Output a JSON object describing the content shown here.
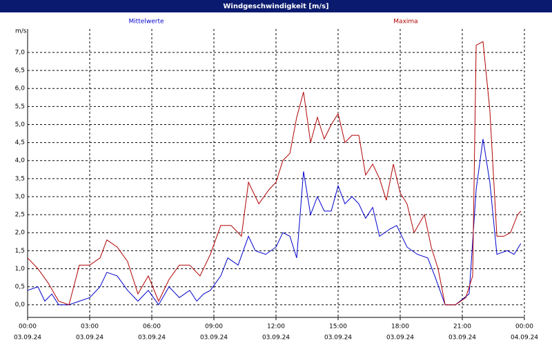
{
  "chart_data": {
    "type": "line",
    "title": "Windgeschwindigkeit [m/s]",
    "y_label": "m/s",
    "xlim": [
      0,
      24
    ],
    "ylim": [
      -0.35,
      7.65
    ],
    "grid": true,
    "xticks": [
      {
        "value": 0,
        "label": "00:00"
      },
      {
        "value": 3,
        "label": "03:00"
      },
      {
        "value": 6,
        "label": "06:00"
      },
      {
        "value": 9,
        "label": "09:00"
      },
      {
        "value": 12,
        "label": "12:00"
      },
      {
        "value": 15,
        "label": "15:00"
      },
      {
        "value": 18,
        "label": "18:00"
      },
      {
        "value": 21,
        "label": "21:00"
      },
      {
        "value": 24,
        "label": "00:00"
      }
    ],
    "xtick_dates": [
      "03.09.24",
      "03.09.24",
      "03.09.24",
      "03.09.24",
      "03.09.24",
      "03.09.24",
      "03.09.24",
      "03.09.24",
      "04.09.24"
    ],
    "yticks": [
      {
        "value": 0,
        "label": "0,0"
      },
      {
        "value": 0.5,
        "label": "0,5"
      },
      {
        "value": 1,
        "label": "1,0"
      },
      {
        "value": 1.5,
        "label": "1,5"
      },
      {
        "value": 2,
        "label": "2,0"
      },
      {
        "value": 2.5,
        "label": "2,5"
      },
      {
        "value": 3,
        "label": "3,0"
      },
      {
        "value": 3.5,
        "label": "3,5"
      },
      {
        "value": 4,
        "label": "4,0"
      },
      {
        "value": 4.5,
        "label": "4,5"
      },
      {
        "value": 5,
        "label": "5,0"
      },
      {
        "value": 5.5,
        "label": "5,5"
      },
      {
        "value": 6,
        "label": "6,0"
      },
      {
        "value": 6.5,
        "label": "6,5"
      },
      {
        "value": 7,
        "label": "7,0"
      }
    ],
    "series": [
      {
        "name": "Mittelwerte",
        "color": "#0000cc",
        "x": [
          0,
          0.5,
          0.83,
          1.17,
          1.5,
          2,
          2.5,
          3,
          3.5,
          3.83,
          4.33,
          4.83,
          5.33,
          5.83,
          6.33,
          6.83,
          7.33,
          7.83,
          8.17,
          8.5,
          8.83,
          9.33,
          9.67,
          10.17,
          10.67,
          11,
          11.5,
          12,
          12.33,
          12.67,
          13,
          13.33,
          13.67,
          14,
          14.33,
          14.67,
          15,
          15.33,
          15.67,
          16,
          16.33,
          16.67,
          17,
          17.5,
          17.83,
          18.33,
          18.83,
          19.33,
          19.67,
          20.17,
          20.67,
          21.33,
          21.67,
          22,
          22.33,
          22.67,
          23.17,
          23.5,
          23.83
        ],
        "values": [
          0.4,
          0.5,
          0.1,
          0.3,
          0.0,
          0,
          0.1,
          0.2,
          0.5,
          0.9,
          0.8,
          0.4,
          0.1,
          0.4,
          0.0,
          0.5,
          0.2,
          0.4,
          0.1,
          0.3,
          0.4,
          0.8,
          1.3,
          1.1,
          1.9,
          1.5,
          1.4,
          1.6,
          2.0,
          1.9,
          1.3,
          3.7,
          2.5,
          3.0,
          2.6,
          2.6,
          3.3,
          2.8,
          3.0,
          2.8,
          2.4,
          2.7,
          1.9,
          2.1,
          2.2,
          1.6,
          1.4,
          1.3,
          0.8,
          0.0,
          0,
          0.3,
          3.2,
          4.6,
          3.4,
          1.4,
          1.5,
          1.4,
          1.7
        ]
      },
      {
        "name": "Maxima",
        "color": "#b00000",
        "x": [
          0,
          0.5,
          1,
          1.5,
          2,
          2.5,
          3,
          3.5,
          3.83,
          4.33,
          4.83,
          5.33,
          5.83,
          6.33,
          6.83,
          7.33,
          7.83,
          8.33,
          8.83,
          9.33,
          9.83,
          10.33,
          10.67,
          11.17,
          11.67,
          12,
          12.33,
          12.67,
          13,
          13.33,
          13.67,
          14,
          14.33,
          14.67,
          15,
          15.33,
          15.67,
          16,
          16.33,
          16.67,
          17,
          17.33,
          17.67,
          18,
          18.33,
          18.67,
          19.17,
          19.5,
          19.83,
          20.17,
          20.67,
          21.17,
          21.5,
          21.67,
          22,
          22.33,
          22.67,
          23,
          23.33,
          23.67,
          23.83
        ],
        "values": [
          1.3,
          1.0,
          0.6,
          0.1,
          0,
          1.1,
          1.1,
          1.3,
          1.8,
          1.6,
          1.2,
          0.3,
          0.8,
          0.1,
          0.7,
          1.1,
          1.1,
          0.8,
          1.4,
          2.2,
          2.2,
          1.9,
          3.4,
          2.8,
          3.2,
          3.4,
          4.0,
          4.2,
          5.2,
          5.9,
          4.5,
          5.2,
          4.6,
          5.0,
          5.3,
          4.5,
          4.7,
          4.7,
          3.6,
          3.9,
          3.5,
          2.9,
          3.9,
          3.1,
          2.8,
          2.0,
          2.5,
          1.6,
          1.0,
          0.0,
          0,
          0.2,
          0.8,
          7.2,
          7.3,
          5.4,
          1.9,
          1.9,
          2.0,
          2.5,
          2.6
        ]
      }
    ]
  }
}
